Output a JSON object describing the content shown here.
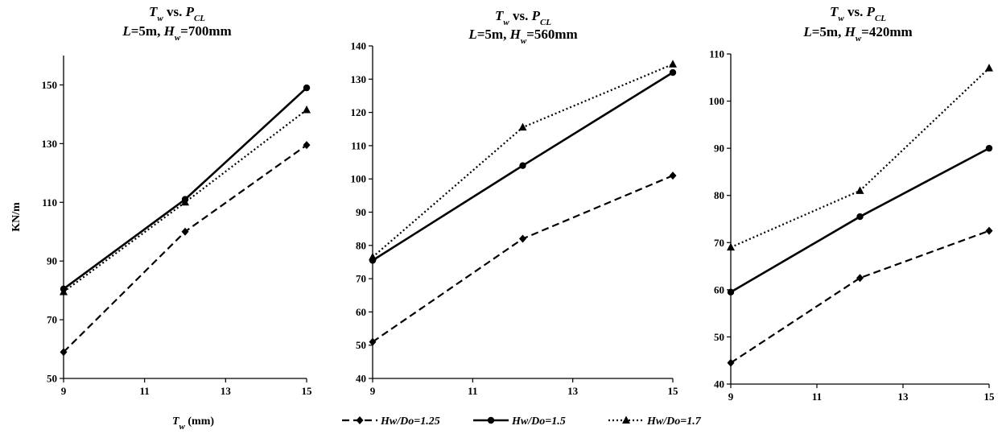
{
  "chart_data": [
    {
      "type": "line",
      "title_line1": [
        "T",
        "w",
        " vs. ",
        "P",
        "CL"
      ],
      "title_line2": [
        "L",
        "=5m, ",
        "H",
        "w",
        "=700mm"
      ],
      "xlabel": [
        "T",
        "w",
        " (mm)"
      ],
      "ylabel": "KN/m",
      "xlim": [
        9,
        15
      ],
      "ylim": [
        50,
        160
      ],
      "xticks": [
        9,
        11,
        13,
        15
      ],
      "yticks": [
        50,
        70,
        90,
        110,
        130,
        150
      ],
      "x": [
        9,
        12,
        15
      ],
      "series": [
        {
          "name": "Hw/Do=1.25",
          "style": "dashed",
          "marker": "diamond",
          "values": [
            59,
            100,
            129.5
          ]
        },
        {
          "name": "Hw/Do=1.5",
          "style": "solid",
          "marker": "circle",
          "values": [
            80.5,
            111,
            149
          ]
        },
        {
          "name": "Hw/Do=1.7",
          "style": "dotted",
          "marker": "triangle",
          "values": [
            79.5,
            110,
            141.5
          ]
        }
      ]
    },
    {
      "type": "line",
      "title_line1": [
        "T",
        "w",
        " vs. ",
        "P",
        "CL"
      ],
      "title_line2": [
        "L",
        "=5m, ",
        "H",
        "w",
        "=560mm"
      ],
      "xlim": [
        9,
        15
      ],
      "ylim": [
        40,
        140
      ],
      "xticks": [
        9,
        11,
        13,
        15
      ],
      "yticks": [
        40,
        50,
        60,
        70,
        80,
        90,
        100,
        110,
        120,
        130,
        140
      ],
      "x": [
        9,
        12,
        15
      ],
      "series": [
        {
          "name": "Hw/Do=1.25",
          "style": "dashed",
          "marker": "diamond",
          "values": [
            51,
            82,
            101
          ]
        },
        {
          "name": "Hw/Do=1.5",
          "style": "solid",
          "marker": "circle",
          "values": [
            75.5,
            104,
            132
          ]
        },
        {
          "name": "Hw/Do=1.7",
          "style": "dotted",
          "marker": "triangle",
          "values": [
            76.5,
            115.5,
            134.5
          ]
        }
      ]
    },
    {
      "type": "line",
      "title_line1": [
        "T",
        "w",
        " vs. ",
        "P",
        "CL"
      ],
      "title_line2": [
        "L",
        "=5m, ",
        "H",
        "w",
        "=420mm"
      ],
      "xlim": [
        9,
        15
      ],
      "ylim": [
        40,
        110
      ],
      "xticks": [
        9,
        11,
        13,
        15
      ],
      "yticks": [
        40,
        50,
        60,
        70,
        80,
        90,
        100,
        110
      ],
      "x": [
        9,
        12,
        15
      ],
      "series": [
        {
          "name": "Hw/Do=1.25",
          "style": "dashed",
          "marker": "diamond",
          "values": [
            44.5,
            62.5,
            72.5
          ]
        },
        {
          "name": "Hw/Do=1.5",
          "style": "solid",
          "marker": "circle",
          "values": [
            59.5,
            75.5,
            90
          ]
        },
        {
          "name": "Hw/Do=1.7",
          "style": "dotted",
          "marker": "triangle",
          "values": [
            69,
            81,
            107
          ]
        }
      ]
    }
  ],
  "legend": {
    "placement": "bottom-center",
    "items": [
      "Hw/Do=1.25",
      "Hw/Do=1.5",
      "Hw/Do=1.7"
    ]
  },
  "colors": {
    "line": "#000000",
    "axis": "#000000",
    "background": "#ffffff"
  }
}
